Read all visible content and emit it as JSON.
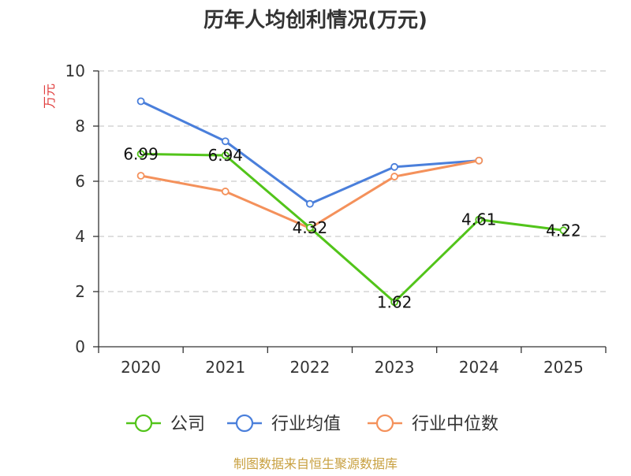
{
  "chart_data": {
    "type": "line",
    "title": "历年人均创利情况(万元)",
    "ylabel": "万元",
    "ylim": [
      0,
      10
    ],
    "yticks": [
      0,
      2,
      4,
      6,
      8,
      10
    ],
    "grid": true,
    "legend_position": "bottom",
    "categories": [
      "2020",
      "2021",
      "2022",
      "2023",
      "2024",
      "2025"
    ],
    "series": [
      {
        "name": "公司",
        "color": "#52c41a",
        "values": [
          6.99,
          6.94,
          4.32,
          1.62,
          4.61,
          4.22
        ],
        "labels": [
          "6.99",
          "6.94",
          "4.32",
          "1.62",
          "4.61",
          "4.22"
        ]
      },
      {
        "name": "行业均值",
        "color": "#4a7fdb",
        "values": [
          8.9,
          7.45,
          5.18,
          6.52,
          6.75,
          null
        ]
      },
      {
        "name": "行业中位数",
        "color": "#f4915b",
        "values": [
          6.2,
          5.63,
          4.3,
          6.17,
          6.75,
          null
        ]
      }
    ]
  },
  "source": "制图数据来自恒生聚源数据库",
  "colors": {
    "title": "#333333",
    "ylabel": "#e03c3c",
    "source": "#c8a040",
    "grid": "#cccccc",
    "axis": "#333333"
  }
}
